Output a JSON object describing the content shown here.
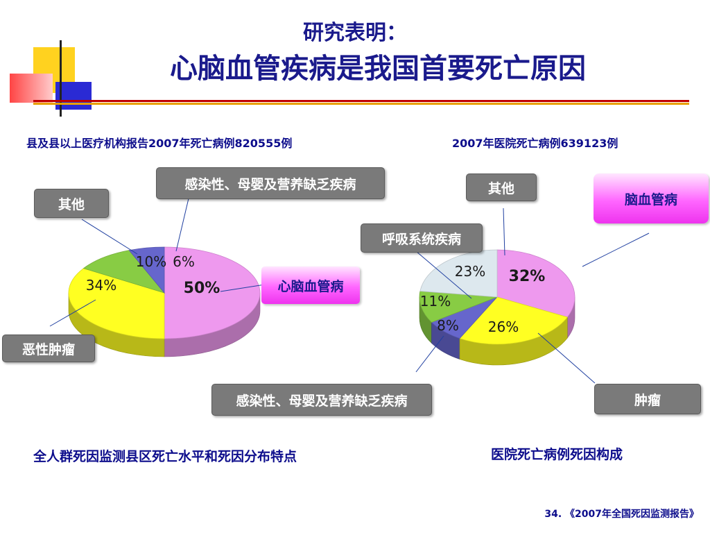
{
  "slide": {
    "title_line1": "研究表明：",
    "title_line2": "心脑血管疾病是我国首要死亡原因",
    "source": "34. 《2007年全国死因监测报告》"
  },
  "colors": {
    "pink": "#ee99ee",
    "yellow": "#ffff22",
    "green": "#88cc44",
    "blue": "#6666cc",
    "lightblue": "#dde8ee",
    "title": "#1a1a8c"
  },
  "chart_data": [
    {
      "type": "pie",
      "subtitle": "县及县以上医疗机构报告2007年死亡病例820555例",
      "caption": "全人群死因监测县区死亡水平和死因分布特点",
      "slices": [
        {
          "label": "心脑血管病",
          "value": 50,
          "display": "50%",
          "color": "#ee99ee"
        },
        {
          "label": "恶性肿瘤",
          "value": 34,
          "display": "34%",
          "color": "#ffff22"
        },
        {
          "label": "其他",
          "value": 10,
          "display": "10%",
          "color": "#88cc44"
        },
        {
          "label": "感染性、母婴及营养缺乏疾病",
          "value": 6,
          "display": "6%",
          "color": "#6666cc"
        }
      ]
    },
    {
      "type": "pie",
      "subtitle": "2007年医院死亡病例639123例",
      "caption": "医院死亡病例死因构成",
      "slices": [
        {
          "label": "脑血管病",
          "value": 32,
          "display": "32%",
          "color": "#ee99ee"
        },
        {
          "label": "肿瘤",
          "value": 26,
          "display": "26%",
          "color": "#ffff22"
        },
        {
          "label": "感染性、母婴及营养缺乏疾病",
          "value": 8,
          "display": "8%",
          "color": "#6666cc"
        },
        {
          "label": "呼吸系统疾病",
          "value": 11,
          "display": "11%",
          "color": "#88cc44"
        },
        {
          "label": "其他",
          "value": 23,
          "display": "23%",
          "color": "#dde8ee"
        }
      ]
    }
  ]
}
